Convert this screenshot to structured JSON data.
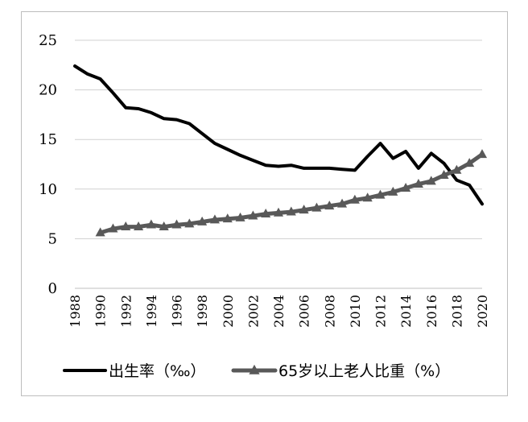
{
  "chart_data": {
    "type": "line",
    "title": "",
    "xlabel": "",
    "ylabel": "",
    "ylim": [
      0,
      25
    ],
    "yticks": [
      0,
      5,
      10,
      15,
      20,
      25
    ],
    "grid": "horizontal",
    "legend_position": "bottom",
    "x": [
      1988,
      1989,
      1990,
      1991,
      1992,
      1993,
      1994,
      1995,
      1996,
      1997,
      1998,
      1999,
      2000,
      2001,
      2002,
      2003,
      2004,
      2005,
      2006,
      2007,
      2008,
      2009,
      2010,
      2011,
      2012,
      2013,
      2014,
      2015,
      2016,
      2017,
      2018,
      2019,
      2020
    ],
    "xtick_labels": [
      "1988",
      "1990",
      "1992",
      "1994",
      "1996",
      "1998",
      "2000",
      "2002",
      "2004",
      "2006",
      "2008",
      "2010",
      "2012",
      "2014",
      "2016",
      "2018",
      "2020"
    ],
    "series": [
      {
        "name": "出生率（‰）",
        "color": "#000000",
        "marker": "none",
        "values": [
          22.4,
          21.6,
          21.1,
          19.7,
          18.2,
          18.1,
          17.7,
          17.1,
          17.0,
          16.6,
          15.6,
          14.6,
          14.0,
          13.4,
          12.9,
          12.4,
          12.3,
          12.4,
          12.1,
          12.1,
          12.1,
          12.0,
          11.9,
          13.3,
          14.6,
          13.1,
          13.8,
          12.1,
          13.6,
          12.6,
          10.9,
          10.4,
          8.5
        ]
      },
      {
        "name": "65岁以上老人比重（%）",
        "color": "#595959",
        "marker": "triangle",
        "values": [
          null,
          null,
          5.6,
          6.0,
          6.2,
          6.2,
          6.4,
          6.2,
          6.4,
          6.5,
          6.7,
          6.9,
          7.0,
          7.1,
          7.3,
          7.5,
          7.6,
          7.7,
          7.9,
          8.1,
          8.3,
          8.5,
          8.9,
          9.1,
          9.4,
          9.7,
          10.1,
          10.5,
          10.8,
          11.4,
          11.9,
          12.6,
          13.5
        ]
      }
    ]
  }
}
